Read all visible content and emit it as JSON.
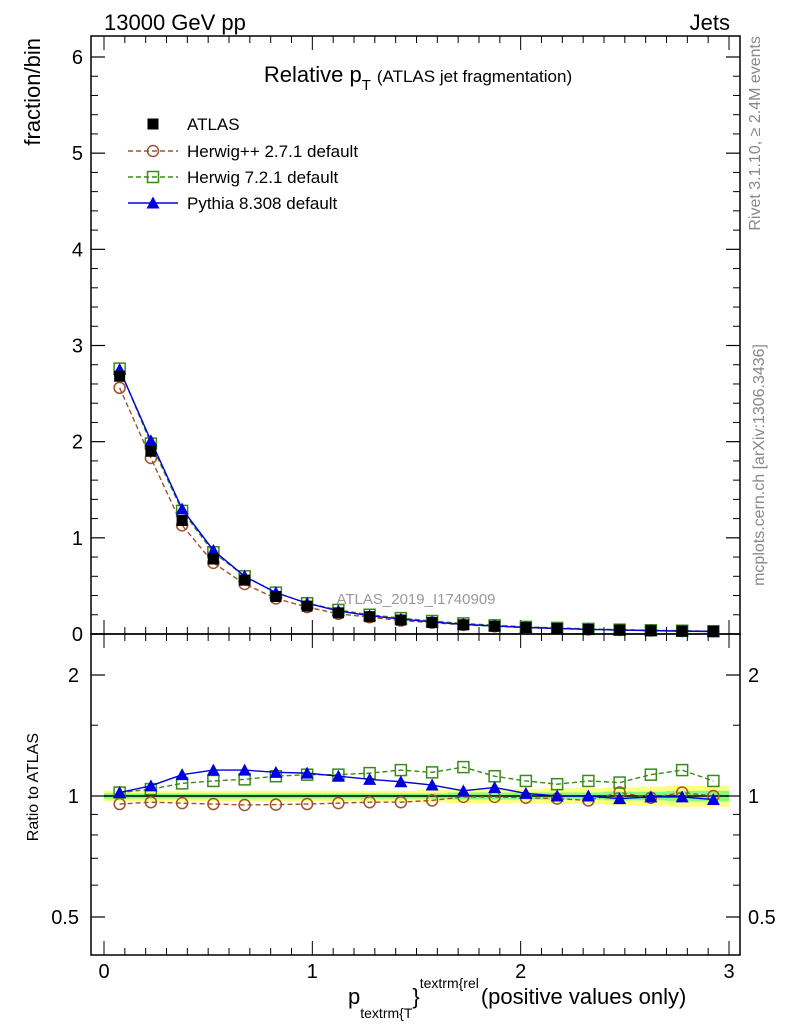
{
  "header": {
    "energy_label": "13000 GeV pp",
    "process_label": "Jets"
  },
  "side_labels": {
    "rivet": "Rivet 3.1.10, ≥ 2.4M events",
    "mcplots": "mcplots.cern.ch [arXiv:1306.3436]"
  },
  "chart_data": {
    "type": "line",
    "title_main": "Relative p",
    "title_sub": "T",
    "title_suffix": "(ATLAS jet fragmentation)",
    "analysis_id": "ATLAS_2019_I1740909",
    "ylabel": "fraction/bin",
    "ratio_ylabel": "Ratio to ATLAS",
    "xlabel_p": "p",
    "xlabel_sub": "textrm{T",
    "xlabel_sup": "textrm{rel",
    "xlabel_brace": "}",
    "xlabel_suffix": "(positive values only)",
    "xlim": [
      0,
      3
    ],
    "ylim": [
      0,
      6.2
    ],
    "ratio_ylim": [
      0.35,
      2.3
    ],
    "x_ticks": [
      "0",
      "1",
      "2",
      "3"
    ],
    "y_ticks": [
      "0",
      "1",
      "2",
      "3",
      "4",
      "5",
      "6"
    ],
    "ratio_ticks": [
      "0.5",
      "1",
      "2"
    ],
    "x": [
      0.075,
      0.225,
      0.375,
      0.525,
      0.675,
      0.825,
      0.975,
      1.125,
      1.275,
      1.425,
      1.575,
      1.725,
      1.875,
      2.025,
      2.175,
      2.325,
      2.475,
      2.625,
      2.775,
      2.925
    ],
    "series": [
      {
        "name": "ATLAS",
        "color": "#000000",
        "marker": "square-filled",
        "values": [
          2.68,
          1.9,
          1.18,
          0.78,
          0.56,
          0.39,
          0.29,
          0.22,
          0.18,
          0.145,
          0.12,
          0.095,
          0.08,
          0.067,
          0.057,
          0.048,
          0.041,
          0.035,
          0.03,
          0.027
        ],
        "ratio": [
          1,
          1,
          1,
          1,
          1,
          1,
          1,
          1,
          1,
          1,
          1,
          1,
          1,
          1,
          1,
          1,
          1,
          1,
          1,
          1
        ]
      },
      {
        "name": "Herwig++ 2.7.1 default",
        "color": "#a0522d",
        "marker": "circle-open",
        "dash": true,
        "values": [
          2.56,
          1.83,
          1.13,
          0.74,
          0.52,
          0.37,
          0.28,
          0.21,
          0.175,
          0.14,
          0.118,
          0.095,
          0.08,
          0.066,
          0.056,
          0.047,
          0.041,
          0.035,
          0.031,
          0.027
        ],
        "ratio": [
          0.955,
          0.965,
          0.96,
          0.955,
          0.95,
          0.952,
          0.955,
          0.96,
          0.965,
          0.965,
          0.975,
          0.995,
          0.995,
          0.99,
          0.985,
          0.975,
          1.02,
          0.99,
          1.02,
          1.0
        ]
      },
      {
        "name": "Herwig 7.2.1 default",
        "color": "#3a8a1a",
        "marker": "square-open",
        "dash": true,
        "values": [
          2.76,
          1.98,
          1.28,
          0.85,
          0.6,
          0.43,
          0.32,
          0.25,
          0.2,
          0.165,
          0.135,
          0.11,
          0.09,
          0.074,
          0.063,
          0.053,
          0.045,
          0.039,
          0.034,
          0.029
        ],
        "ratio": [
          1.02,
          1.04,
          1.075,
          1.09,
          1.1,
          1.12,
          1.13,
          1.13,
          1.14,
          1.16,
          1.145,
          1.18,
          1.12,
          1.09,
          1.07,
          1.09,
          1.08,
          1.13,
          1.16,
          1.09
        ]
      },
      {
        "name": "Pythia 8.308 default",
        "color": "#0000dd",
        "marker": "triangle-filled",
        "values": [
          2.75,
          2.01,
          1.3,
          0.87,
          0.6,
          0.43,
          0.32,
          0.24,
          0.19,
          0.155,
          0.125,
          0.1,
          0.084,
          0.069,
          0.058,
          0.049,
          0.041,
          0.035,
          0.03,
          0.026
        ],
        "ratio": [
          1.02,
          1.06,
          1.13,
          1.16,
          1.16,
          1.145,
          1.14,
          1.12,
          1.1,
          1.085,
          1.065,
          1.03,
          1.05,
          1.015,
          1.0,
          1.0,
          0.985,
          0.995,
          0.995,
          0.98
        ]
      }
    ],
    "uncertainty_band": {
      "inner_color": "#80ff80",
      "outer_color": "#ffff80",
      "inner": [
        0.015,
        0.015,
        0.015,
        0.015,
        0.015,
        0.015,
        0.015,
        0.015,
        0.015,
        0.015,
        0.015,
        0.02,
        0.02,
        0.02,
        0.02,
        0.02,
        0.025,
        0.025,
        0.03,
        0.03
      ],
      "outer": [
        0.03,
        0.03,
        0.03,
        0.03,
        0.03,
        0.03,
        0.03,
        0.03,
        0.03,
        0.03,
        0.035,
        0.04,
        0.04,
        0.04,
        0.045,
        0.045,
        0.05,
        0.055,
        0.06,
        0.06
      ]
    }
  }
}
